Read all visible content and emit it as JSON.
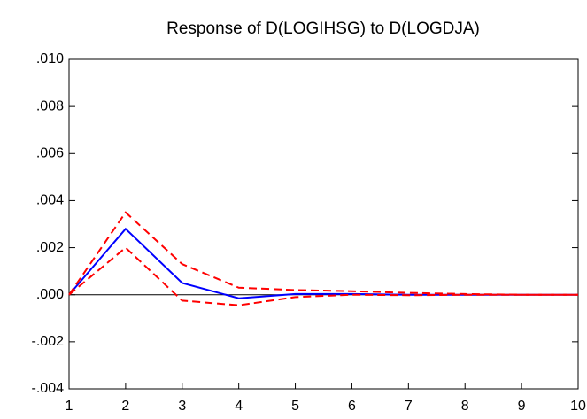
{
  "chart_data": {
    "type": "line",
    "title": "Response of D(LOGIHSG) to D(LOGDJA)",
    "x": [
      1,
      2,
      3,
      4,
      5,
      6,
      7,
      8,
      9,
      10
    ],
    "series": [
      {
        "color": "#0000ff",
        "dashed": false,
        "values": [
          0,
          0.0028,
          0.0005,
          -0.00015,
          3e-05,
          3e-05,
          0,
          0,
          0,
          0
        ]
      },
      {
        "color": "#ff0000",
        "dashed": true,
        "values": [
          0,
          0.0035,
          0.0013,
          0.0003,
          0.0002,
          0.00015,
          8e-05,
          3e-05,
          0,
          0
        ]
      },
      {
        "color": "#ff0000",
        "dashed": true,
        "values": [
          0,
          0.002,
          -0.00025,
          -0.00045,
          -0.0001,
          0,
          -2e-05,
          0,
          0,
          0
        ]
      }
    ],
    "xlim": [
      1,
      10
    ],
    "xticks": [
      1,
      2,
      3,
      4,
      5,
      6,
      7,
      8,
      9,
      10
    ],
    "ylim": [
      -0.004,
      0.01
    ],
    "yticks": [
      {
        "value": -0.004,
        "label": "-.004"
      },
      {
        "value": -0.002,
        "label": "-.002"
      },
      {
        "value": 0,
        "label": ".000"
      },
      {
        "value": 0.002,
        "label": ".002"
      },
      {
        "value": 0.004,
        "label": ".004"
      },
      {
        "value": 0.006,
        "label": ".006"
      },
      {
        "value": 0.008,
        "label": ".008"
      },
      {
        "value": 0.01,
        "label": ".010"
      }
    ],
    "zero_line": true,
    "grid": false
  }
}
